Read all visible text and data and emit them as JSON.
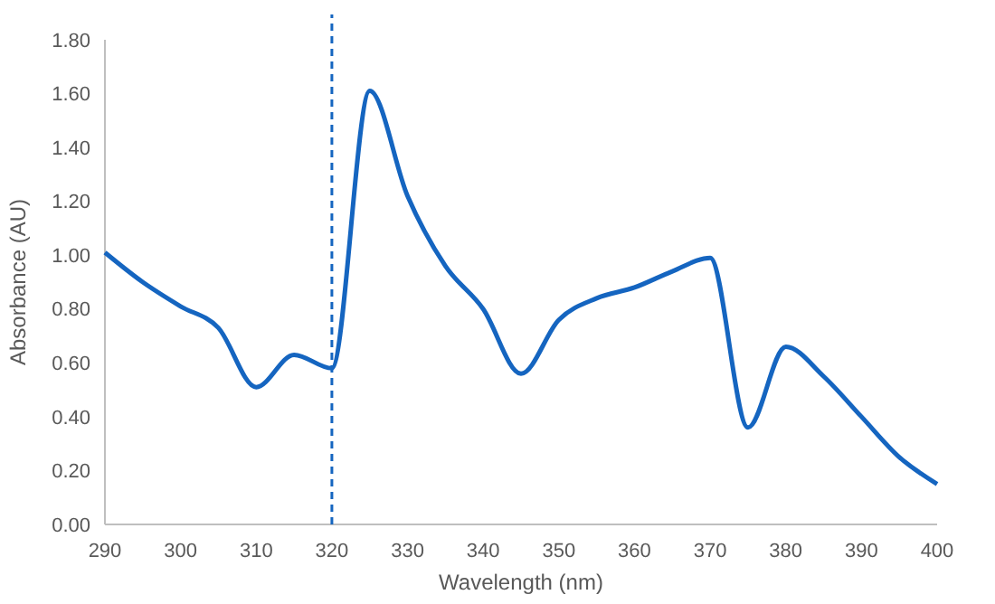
{
  "chart_data": {
    "type": "line",
    "xlabel": "Wavelength (nm)",
    "ylabel": "Absorbance (AU)",
    "x": [
      290,
      295,
      300,
      305,
      310,
      315,
      320,
      325,
      330,
      335,
      340,
      345,
      350,
      355,
      360,
      365,
      370,
      375,
      380,
      385,
      390,
      395,
      400
    ],
    "series": [
      {
        "color": "#1565c0",
        "values": [
          1.01,
          0.9,
          0.81,
          0.73,
          0.51,
          0.63,
          0.58,
          1.61,
          1.22,
          0.96,
          0.8,
          0.56,
          0.76,
          0.84,
          0.88,
          0.94,
          0.99,
          0.36,
          0.66,
          0.55,
          0.4,
          0.25,
          0.15
        ]
      }
    ],
    "xlim": [
      290,
      400
    ],
    "xticks": [
      290,
      300,
      310,
      320,
      330,
      340,
      350,
      360,
      370,
      380,
      390,
      400
    ],
    "ylim": [
      0,
      1.8
    ],
    "yticks": [
      {
        "value": 0,
        "label": "0.00"
      },
      {
        "value": 0.2,
        "label": "0.20"
      },
      {
        "value": 0.4,
        "label": "0.40"
      },
      {
        "value": 0.6,
        "label": "0.60"
      },
      {
        "value": 0.8,
        "label": "0.80"
      },
      {
        "value": 1,
        "label": "1.00"
      },
      {
        "value": 1.2,
        "label": "1.20"
      },
      {
        "value": 1.4,
        "label": "1.40"
      },
      {
        "value": 1.6,
        "label": "1.60"
      },
      {
        "value": 1.8,
        "label": "1.80"
      }
    ],
    "ref_lines": [
      {
        "axis": "x",
        "value": 320,
        "color": "#1565c0",
        "line_style": "dashed"
      }
    ],
    "grid": false,
    "marker": "none",
    "line_style": "solid"
  }
}
